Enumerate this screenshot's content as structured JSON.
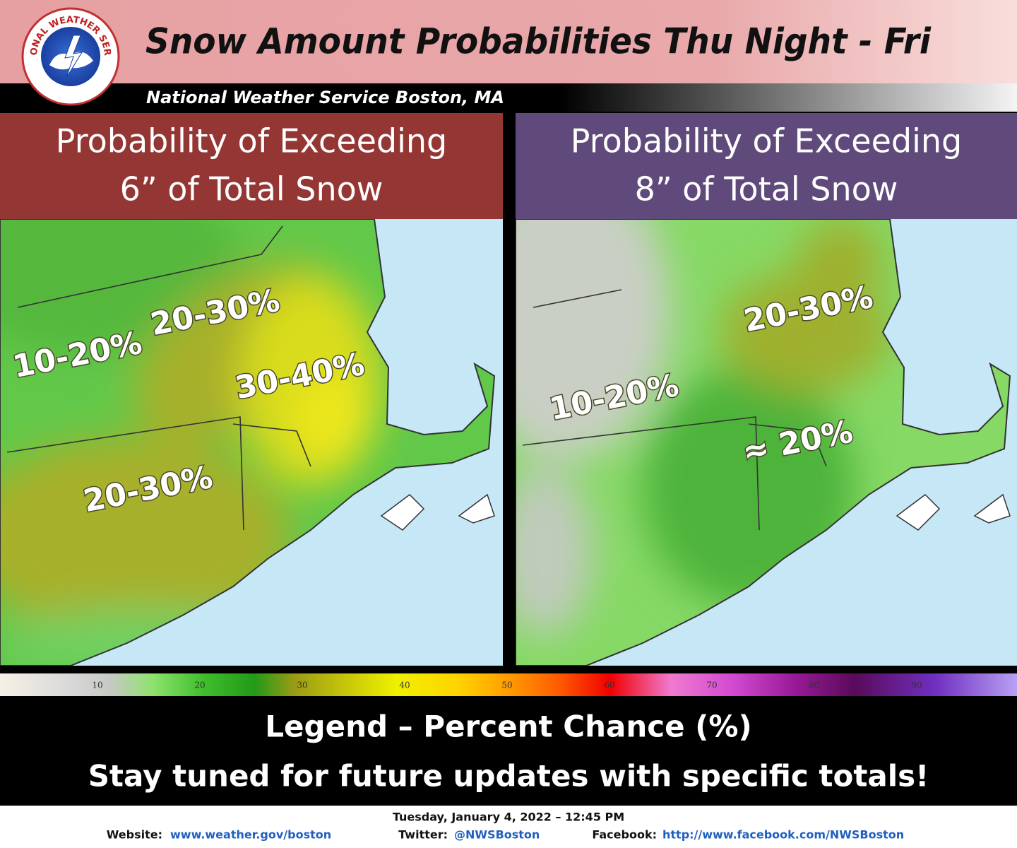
{
  "header": {
    "logo_text": "NATIONAL WEATHER SERVICE",
    "title": "Snow Amount Probabilities Thu Night - Fri",
    "subtitle": "National Weather Service Boston, MA"
  },
  "panels": [
    {
      "title_line1": "Probability of Exceeding",
      "title_line2": "6” of Total Snow",
      "labels": [
        "20-30%",
        "10-20%",
        "30-40%",
        "20-30%"
      ]
    },
    {
      "title_line1": "Probability of Exceeding",
      "title_line2": "8” of Total Snow",
      "labels": [
        "20-30%",
        "10-20%",
        "≈ 20%"
      ]
    }
  ],
  "legend": {
    "ticks": [
      10,
      20,
      30,
      40,
      50,
      60,
      70,
      80,
      90
    ],
    "title": "Legend – Percent Chance (%)",
    "message": "Stay tuned for future updates with specific totals!"
  },
  "footer": {
    "date": "Tuesday, January 4, 2022 – 12:45 PM",
    "website_label": "Website:",
    "website": "www.weather.gov/boston",
    "twitter_label": "Twitter:",
    "twitter": "@NWSBoston",
    "facebook_label": "Facebook:",
    "facebook": "http://www.facebook.com/NWSBoston"
  }
}
